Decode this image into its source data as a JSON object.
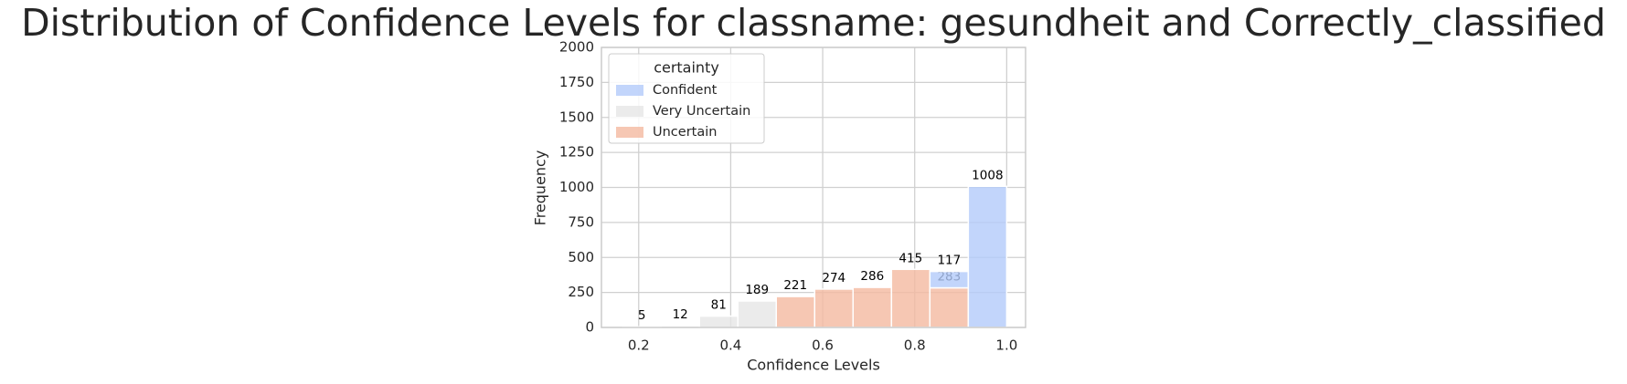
{
  "chart_data": {
    "type": "histogram",
    "title": "Distribution of Confidence Levels for classname: gesundheit and Correctly_classified",
    "x_label": "Confidence Levels",
    "y_label": "Frequency",
    "bins": [
      0.165,
      0.2485,
      0.332,
      0.4155,
      0.499,
      0.5825,
      0.666,
      0.7495,
      0.833,
      0.9165,
      1.0
    ],
    "series": [
      {
        "name": "Confident",
        "color": "#b3cbfa",
        "values": [
          0,
          0,
          0,
          0,
          0,
          0,
          0,
          0,
          117,
          1008
        ]
      },
      {
        "name": "Very Uncertain",
        "color": "#e6e6e6",
        "values": [
          5,
          12,
          81,
          189,
          0,
          0,
          0,
          0,
          0,
          0
        ]
      },
      {
        "name": "Uncertain",
        "color": "#f4b9a0",
        "values": [
          0,
          0,
          0,
          0,
          221,
          274,
          286,
          415,
          283,
          0
        ]
      }
    ],
    "legend_title": "certainty",
    "legend_position": "upper left",
    "xlim": [
      0.119,
      1.041
    ],
    "xticks": [
      0.2,
      0.4,
      0.6,
      0.8,
      {
        "value": 1.0,
        "label": "1.0"
      }
    ],
    "ylim": [
      0,
      2000
    ],
    "yticks": [
      0,
      250,
      500,
      750,
      1000,
      1250,
      1500,
      1750,
      2000
    ],
    "grid": true
  }
}
